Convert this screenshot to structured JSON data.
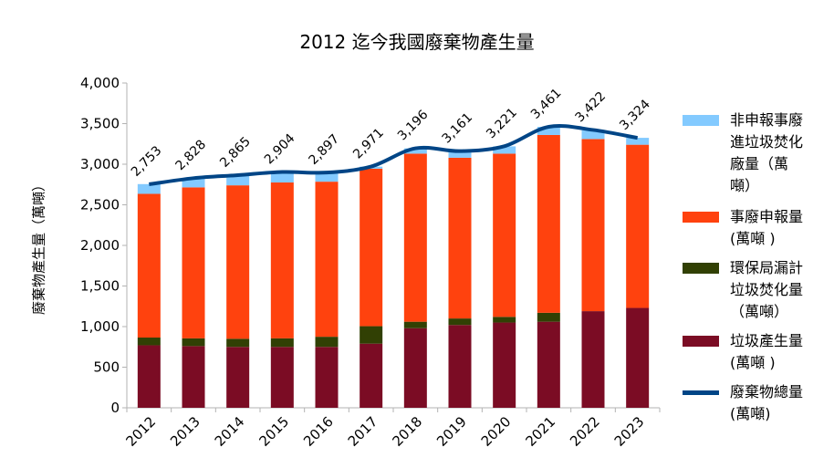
{
  "chart_data": {
    "type": "bar",
    "title": "2012 迄今我國廢棄物產生量",
    "ylabel": "廢棄物產生量（萬噸）",
    "xlabel": "",
    "ylim": [
      0,
      4000
    ],
    "y_ticks": [
      "0",
      "500",
      "1,000",
      "1,500",
      "2,000",
      "2,500",
      "3,000",
      "3,500",
      "4,000"
    ],
    "categories": [
      "2012",
      "2013",
      "2014",
      "2015",
      "2016",
      "2017",
      "2018",
      "2019",
      "2020",
      "2021",
      "2022",
      "2023"
    ],
    "stacked": true,
    "series": [
      {
        "name": "垃圾產生量\n(萬噸 )",
        "kind": "bar",
        "color": "#7b0c24",
        "values": [
          770,
          760,
          750,
          750,
          750,
          790,
          980,
          1020,
          1050,
          1060,
          1190,
          1230
        ]
      },
      {
        "name": "環保局漏計\n垃圾焚化量\n（萬噸）",
        "kind": "bar",
        "color": "#314004",
        "values": [
          95,
          95,
          100,
          105,
          125,
          215,
          80,
          80,
          70,
          110,
          0,
          0
        ]
      },
      {
        "name": "事廢申報量\n(萬噸 )",
        "kind": "bar",
        "color": "#ff420e",
        "values": [
          1770,
          1860,
          1890,
          1920,
          1910,
          1940,
          2070,
          1980,
          2010,
          2190,
          2120,
          2010
        ]
      },
      {
        "name": "非申報事廢\n進垃圾焚化\n廠量（萬\n噸）",
        "kind": "bar",
        "color": "#83caff",
        "values": [
          120,
          110,
          125,
          130,
          110,
          25,
          65,
          80,
          90,
          100,
          110,
          85
        ]
      },
      {
        "name": "廢棄物總量\n(萬噸)",
        "kind": "line",
        "color": "#004586",
        "values": [
          2753,
          2828,
          2865,
          2904,
          2897,
          2971,
          3196,
          3161,
          3221,
          3461,
          3422,
          3324
        ],
        "labels": [
          "2,753",
          "2,828",
          "2,865",
          "2,904",
          "2,897",
          "2,971",
          "3,196",
          "3,161",
          "3,221",
          "3,461",
          "3,422",
          "3,324"
        ]
      }
    ],
    "legend_order": [
      3,
      2,
      1,
      0,
      4
    ],
    "grid": false,
    "legend_position": "right"
  }
}
